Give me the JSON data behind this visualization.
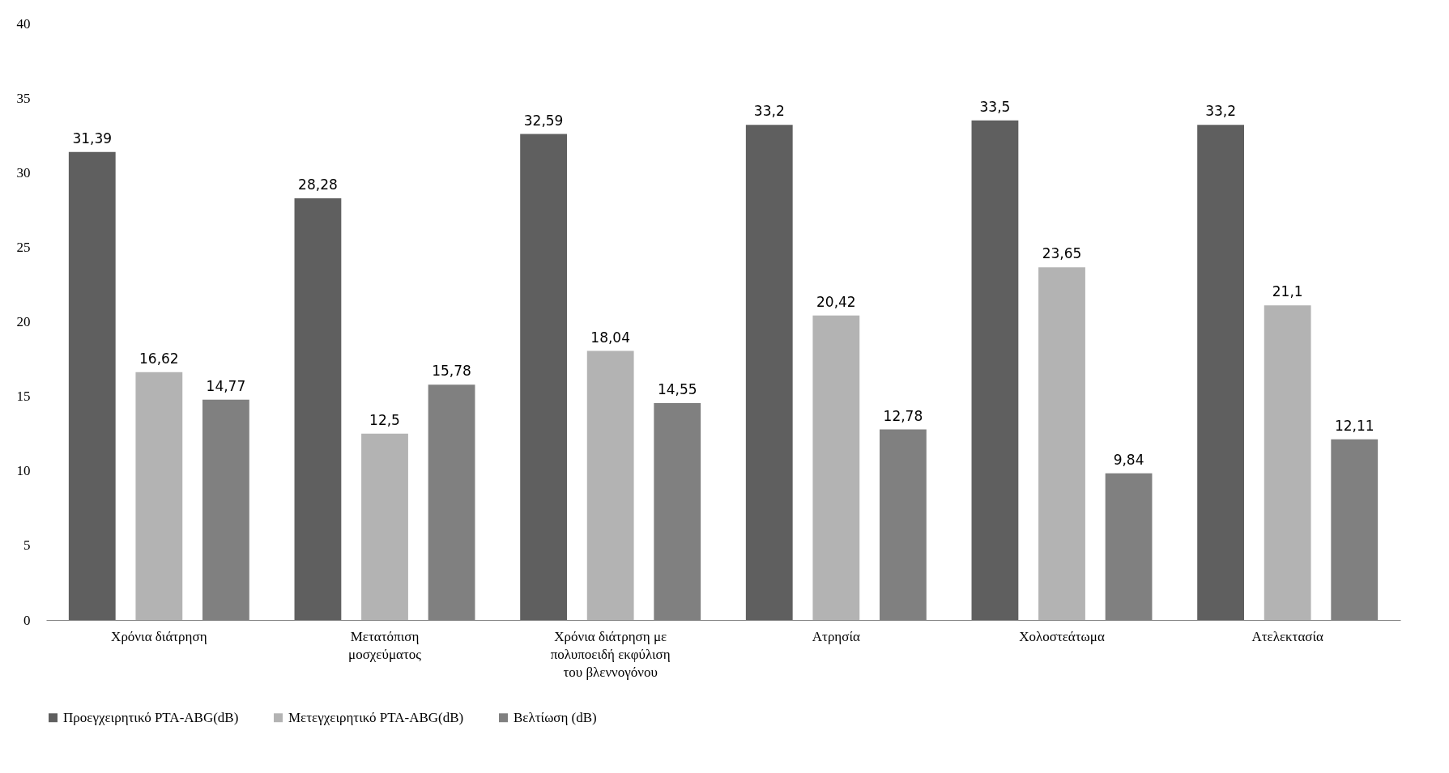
{
  "chart_data": {
    "type": "bar",
    "categories": [
      "Χρόνια διάτρηση",
      "Μετατόπιση μοσχεύματος",
      "Χρόνια διάτρηση με πολυποειδή εκφύλιση του βλεννογόνου",
      "Ατρησία",
      "Χολοστεάτωμα",
      "Ατελεκτασία"
    ],
    "series": [
      {
        "name": "Προεγχειρητικό PTA-ABG(dB)",
        "color": "#5f5f5f",
        "values": [
          31.39,
          28.28,
          32.59,
          33.2,
          33.5,
          33.2
        ],
        "value_labels": [
          "31,39",
          "28,28",
          "32,59",
          "33,2",
          "33,5",
          "33,2"
        ]
      },
      {
        "name": "Μετεγχειρητικό PTA-ABG(dB)",
        "color": "#b3b3b3",
        "values": [
          16.62,
          12.5,
          18.04,
          20.42,
          23.65,
          21.1
        ],
        "value_labels": [
          "16,62",
          "12,5",
          "18,04",
          "20,42",
          "23,65",
          "21,1"
        ]
      },
      {
        "name": "Βελτίωση (dB)",
        "color": "#808080",
        "values": [
          14.77,
          15.78,
          14.55,
          12.78,
          9.84,
          12.11
        ],
        "value_labels": [
          "14,77",
          "15,78",
          "14,55",
          "12,78",
          "9,84",
          "12,11"
        ]
      }
    ],
    "ylim": [
      0,
      40
    ],
    "yticks": [
      0,
      5,
      10,
      15,
      20,
      25,
      30,
      35,
      40
    ],
    "grid": false,
    "legend": "bottom"
  }
}
